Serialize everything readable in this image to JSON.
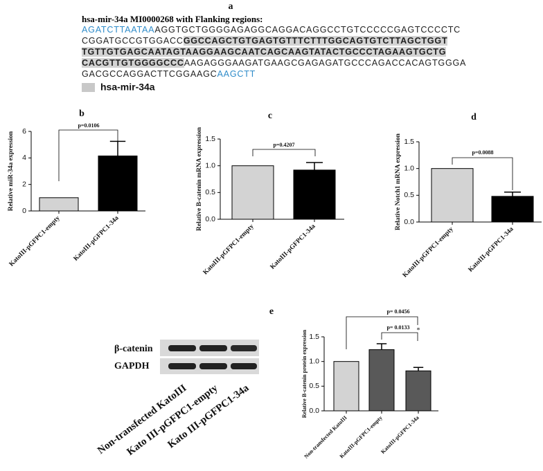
{
  "panel_a": {
    "label": "a",
    "title": "hsa-mir-34a MI0000268 with Flanking regions:",
    "lines": [
      [
        {
          "text": "AGATCTTAATAA",
          "color": "#2e8bc9"
        },
        {
          "text": "AGGTGCTGGGGAGAGGCAGGACAGGCCTGTCCCCCGAGTCCCCTC"
        }
      ],
      [
        {
          "text": "CGGATGCCGTGGACC"
        },
        {
          "text": "GGCCAGCTGTGAGTGTTTCTTTGGCAGTGTCTTAGCTGGT",
          "bold": true,
          "background": "#d3d3d3"
        }
      ],
      [
        {
          "text": "TGTTGTGAGCAATAGTAAGGAAGCAATCAGCAAGTATACTGCCCTAGAAGTGCTG",
          "bold": true,
          "background": "#d3d3d3"
        }
      ],
      [
        {
          "text": "CACGTTGTGGGGCCC",
          "bold": true,
          "background": "#d3d3d3"
        },
        {
          "text": "AAGAGGGAAGATGAAGCGAGAGATGCCCAGACCACAGTGGGA"
        }
      ],
      [
        {
          "text": "GACGCCAGGACTTCGGAAGC"
        },
        {
          "text": "AAGCTT",
          "color": "#2e8bc9"
        }
      ]
    ],
    "legend": {
      "text": "hsa-mir-34a",
      "color": "#c8c8c8"
    }
  },
  "chart_data": [
    {
      "type": "bar",
      "label": "b",
      "ylabel": "Relative miR-34a expression",
      "categories": [
        "KatoIII-pGFPC1-empty",
        "KatoIII-pGFPC1-34a"
      ],
      "values": [
        1,
        4.15
      ],
      "errors": [
        null,
        1.1
      ],
      "colors": [
        "#d3d3d3",
        "#000000"
      ],
      "ylim": [
        0,
        6
      ],
      "yticks": [
        0,
        2,
        4,
        6
      ],
      "annotations": [
        {
          "text": "p=0.0106"
        }
      ]
    },
    {
      "type": "bar",
      "label": "c",
      "ylabel": "Relative B-catenin mRNA expression",
      "categories": [
        "KatoIII-pGFPC1-empty",
        "KatoIII-pGFPC1-34a"
      ],
      "values": [
        1,
        0.92
      ],
      "errors": [
        null,
        0.14
      ],
      "colors": [
        "#d3d3d3",
        "#000000"
      ],
      "ylim": [
        0,
        1.5
      ],
      "yticks": [
        {
          "value": 0,
          "label": "0.0"
        },
        {
          "value": 0.5,
          "label": "0.5"
        },
        {
          "value": 1,
          "label": "1.0"
        },
        {
          "value": 1.5,
          "label": "1.5"
        }
      ],
      "annotations": [
        {
          "text": "p=0.4207"
        }
      ]
    },
    {
      "type": "bar",
      "label": "d",
      "ylabel": "Relative Notch1 mRNA expression",
      "categories": [
        "KatoIII-pGFPC1-empty",
        "KatoIII-pGFPC1-34a"
      ],
      "values": [
        1,
        0.48
      ],
      "errors": [
        null,
        0.08
      ],
      "colors": [
        "#d3d3d3",
        "#000000"
      ],
      "ylim": [
        0,
        1.5
      ],
      "yticks": [
        {
          "value": 0,
          "label": "0.0"
        },
        {
          "value": 0.5,
          "label": "0.5"
        },
        {
          "value": 1,
          "label": "1.0"
        },
        {
          "value": 1.5,
          "label": "1.5"
        }
      ],
      "annotations": [
        {
          "text": "p=0.0088"
        }
      ]
    },
    {
      "type": "bar",
      "label": "e",
      "ylabel": "Relative B-catenin protein expression",
      "categories": [
        "Non-transfected KatoIII",
        "KatoIII-pGFPC1-empty",
        "KatoIII-pGFPC1-34a"
      ],
      "values": [
        1,
        1.24,
        0.81
      ],
      "errors": [
        null,
        0.12,
        0.07
      ],
      "colors": [
        "#d3d3d3",
        "#595959",
        "#595959"
      ],
      "ylim": [
        0,
        1.5
      ],
      "yticks": [
        {
          "value": 0,
          "label": "0.0"
        },
        {
          "value": 0.5,
          "label": "0.5"
        },
        {
          "value": 1,
          "label": "1.0"
        },
        {
          "value": 1.5,
          "label": "1.5"
        }
      ],
      "annotations": [
        {
          "text": "p= 0.0456"
        },
        {
          "text": "p= 0.0133"
        },
        {
          "text": "*"
        }
      ]
    }
  ],
  "blot": {
    "rows": [
      "β-catenin",
      "GAPDH"
    ],
    "lanes": [
      "Non-transfected KatoIII",
      "Kato III-pGFPC1-empty",
      "Kato III-pGFPC1-34a"
    ]
  }
}
